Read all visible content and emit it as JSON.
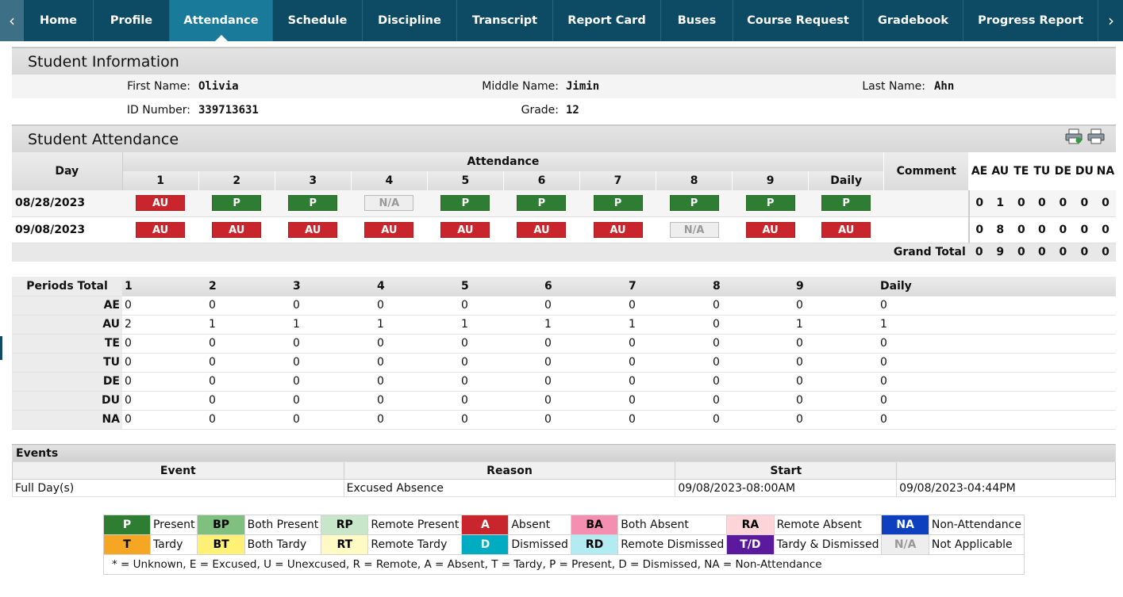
{
  "nav": {
    "prev": "‹",
    "next": "›",
    "tabs": [
      "Home",
      "Profile",
      "Attendance",
      "Schedule",
      "Discipline",
      "Transcript",
      "Report Card",
      "Buses",
      "Course Request",
      "Gradebook",
      "Progress Report"
    ],
    "active": "Attendance"
  },
  "student_info": {
    "title": "Student Information",
    "first_name_label": "First Name:",
    "first_name": "Olivia",
    "middle_name_label": "Middle Name:",
    "middle_name": "Jimin",
    "last_name_label": "Last Name:",
    "last_name": "Ahn",
    "id_label": "ID Number:",
    "id": "339713631",
    "grade_label": "Grade:",
    "grade": "12"
  },
  "attendance": {
    "title": "Student Attendance",
    "day_header": "Day",
    "attendance_header": "Attendance",
    "comment_header": "Comment",
    "periods": [
      "1",
      "2",
      "3",
      "4",
      "5",
      "6",
      "7",
      "8",
      "9",
      "Daily"
    ],
    "count_headers": [
      "AE",
      "AU",
      "TE",
      "TU",
      "DE",
      "DU",
      "NA"
    ],
    "rows": [
      {
        "day": "08/28/2023",
        "codes": [
          "AU",
          "P",
          "P",
          "N/A",
          "P",
          "P",
          "P",
          "P",
          "P",
          "P"
        ],
        "comment": "",
        "counts": [
          "0",
          "1",
          "0",
          "0",
          "0",
          "0",
          "0"
        ]
      },
      {
        "day": "09/08/2023",
        "codes": [
          "AU",
          "AU",
          "AU",
          "AU",
          "AU",
          "AU",
          "AU",
          "N/A",
          "AU",
          "AU"
        ],
        "comment": "",
        "counts": [
          "0",
          "8",
          "0",
          "0",
          "0",
          "0",
          "0"
        ]
      }
    ],
    "grand_total_label": "Grand Total",
    "grand_total": [
      "0",
      "9",
      "0",
      "0",
      "0",
      "0",
      "0"
    ]
  },
  "periods_total": {
    "header": "Periods Total",
    "columns": [
      "1",
      "2",
      "3",
      "4",
      "5",
      "6",
      "7",
      "8",
      "9",
      "Daily"
    ],
    "rows": [
      {
        "label": "AE",
        "values": [
          "0",
          "0",
          "0",
          "0",
          "0",
          "0",
          "0",
          "0",
          "0",
          "0"
        ]
      },
      {
        "label": "AU",
        "values": [
          "2",
          "1",
          "1",
          "1",
          "1",
          "1",
          "1",
          "0",
          "1",
          "1"
        ]
      },
      {
        "label": "TE",
        "values": [
          "0",
          "0",
          "0",
          "0",
          "0",
          "0",
          "0",
          "0",
          "0",
          "0"
        ]
      },
      {
        "label": "TU",
        "values": [
          "0",
          "0",
          "0",
          "0",
          "0",
          "0",
          "0",
          "0",
          "0",
          "0"
        ]
      },
      {
        "label": "DE",
        "values": [
          "0",
          "0",
          "0",
          "0",
          "0",
          "0",
          "0",
          "0",
          "0",
          "0"
        ]
      },
      {
        "label": "DU",
        "values": [
          "0",
          "0",
          "0",
          "0",
          "0",
          "0",
          "0",
          "0",
          "0",
          "0"
        ]
      },
      {
        "label": "NA",
        "values": [
          "0",
          "0",
          "0",
          "0",
          "0",
          "0",
          "0",
          "0",
          "0",
          "0"
        ]
      }
    ]
  },
  "events": {
    "title": "Events",
    "headers": [
      "Event",
      "Reason",
      "Start",
      ""
    ],
    "rows": [
      {
        "event": "Full Day(s)",
        "reason": "Excused Absence",
        "start": "09/08/2023-08:00AM",
        "end": "09/08/2023-04:44PM"
      }
    ]
  },
  "legend": {
    "rows": [
      [
        {
          "code": "P",
          "label": "Present",
          "bg": "#2e7d32",
          "fg": "#ffffff"
        },
        {
          "code": "BP",
          "label": "Both Present",
          "bg": "#7fbf7f",
          "fg": "#000000"
        },
        {
          "code": "RP",
          "label": "Remote Present",
          "bg": "#c8e6c9",
          "fg": "#000000"
        },
        {
          "code": "A",
          "label": "Absent",
          "bg": "#c9252c",
          "fg": "#ffffff"
        },
        {
          "code": "BA",
          "label": "Both Absent",
          "bg": "#f48fb1",
          "fg": "#000000"
        },
        {
          "code": "RA",
          "label": "Remote Absent",
          "bg": "#fdd5d8",
          "fg": "#000000"
        },
        {
          "code": "NA",
          "label": "Non-Attendance",
          "bg": "#0d3fbf",
          "fg": "#ffffff"
        }
      ],
      [
        {
          "code": "T",
          "label": "Tardy",
          "bg": "#f5a623",
          "fg": "#000000"
        },
        {
          "code": "BT",
          "label": "Both Tardy",
          "bg": "#fff176",
          "fg": "#000000"
        },
        {
          "code": "RT",
          "label": "Remote Tardy",
          "bg": "#fff9c4",
          "fg": "#000000"
        },
        {
          "code": "D",
          "label": "Dismissed",
          "bg": "#00acc1",
          "fg": "#ffffff"
        },
        {
          "code": "RD",
          "label": "Remote Dismissed",
          "bg": "#b2ebf2",
          "fg": "#000000"
        },
        {
          "code": "T/D",
          "label": "Tardy & Dismissed",
          "bg": "#5b1a9e",
          "fg": "#ffffff"
        },
        {
          "code": "N/A",
          "label": "Not Applicable",
          "bg": "#eeeeee",
          "fg": "#999999"
        }
      ]
    ],
    "footer": "* = Unknown, E = Excused, U = Unexcused, R = Remote, A = Absent, T = Tardy, P = Present, D = Dismissed, NA = Non-Attendance"
  },
  "icons": {
    "print_icons": [
      "print-icon",
      "print-icon"
    ]
  }
}
